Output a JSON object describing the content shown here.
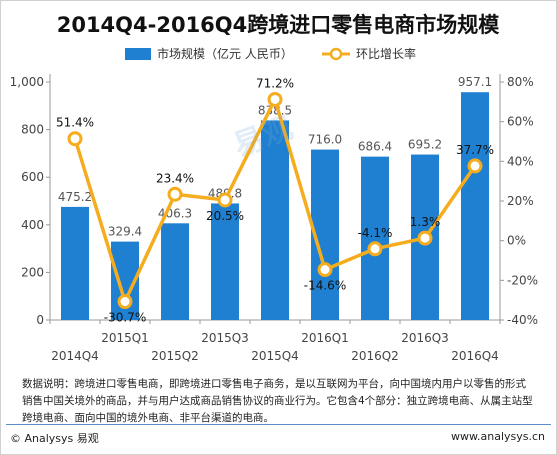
{
  "colors": {
    "bar": "#1f7fd0",
    "line": "#f5ad1f",
    "axis": "#999999"
  },
  "watermark": "易观",
  "chart_data": {
    "type": "bar",
    "title": "2014Q4-2016Q4跨境进口零售电商市场规模",
    "categories": [
      "2014Q4",
      "2015Q1",
      "2015Q2",
      "2015Q3",
      "2015Q4",
      "2016Q1",
      "2016Q2",
      "2016Q3",
      "2016Q4"
    ],
    "series": [
      {
        "name": "市场规模（亿元 人民币）",
        "type": "bar",
        "axis": "left",
        "values": [
          475.2,
          329.4,
          406.3,
          489.8,
          838.5,
          716.0,
          686.4,
          695.2,
          957.1
        ],
        "labels": [
          "475.2",
          "329.4",
          "406.3",
          "489.8",
          "838.5",
          "716.0",
          "686.4",
          "695.2",
          "957.1"
        ]
      },
      {
        "name": "环比增长率",
        "type": "line",
        "axis": "right",
        "values": [
          51.4,
          -30.7,
          23.4,
          20.5,
          71.2,
          -14.6,
          -4.1,
          1.3,
          37.7
        ],
        "labels": [
          "51.4%",
          "-30.7%",
          "23.4%",
          "20.5%",
          "71.2%",
          "-14.6%",
          "-4.1%",
          "1.3%",
          "37.7%"
        ]
      }
    ],
    "y_left": {
      "range": [
        0,
        1000
      ],
      "ticks": [
        0,
        200,
        400,
        600,
        800,
        1000
      ],
      "tick_labels": [
        "0",
        "200",
        "400",
        "600",
        "800",
        "1,000"
      ]
    },
    "y_right": {
      "range": [
        -40,
        80
      ],
      "ticks": [
        -40,
        -20,
        0,
        20,
        40,
        60,
        80
      ],
      "tick_labels": [
        "-40%",
        "-20%",
        "0%",
        "20%",
        "40%",
        "60%",
        "80%"
      ]
    },
    "legend": "top",
    "grid": false
  },
  "note": "数据说明：跨境进口零售电商，即跨境进口零售电子商务，是以互联网为平台，向中国境内用户以零售的形式销售中国关境外的商品，并与用户达成商品销售协议的商业行为。它包含4个部分：独立跨境电商、从属主站型跨境电商、面向中国的境外电商、非平台渠道的电商。",
  "footer": {
    "left": "© Analysys 易观",
    "right": "www.analysys.cn"
  }
}
